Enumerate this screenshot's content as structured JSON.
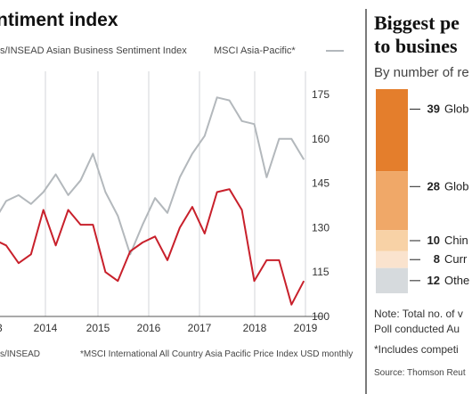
{
  "chart_data": [
    {
      "type": "line",
      "title": "ntiment index",
      "subtitle_left": "s/INSEAD Asian Business Sentiment Index",
      "subtitle_right": "MSCI Asia-Pacific*",
      "footnote_left": "s/INSEAD",
      "footnote_right": "*MSCI International All Country Asia Pacific Price Index USD monthly",
      "x_ticks": [
        "3",
        "2014",
        "2015",
        "2016",
        "2017",
        "2018",
        "2019"
      ],
      "y_ticks": [
        "175",
        "160",
        "145",
        "130",
        "115",
        "100"
      ],
      "ylim": [
        100,
        178
      ],
      "xlim": [
        2013.0,
        2019.3
      ],
      "grid": "vertical",
      "series": [
        {
          "name": "s/INSEAD Asian Business Sentiment Index",
          "color": "#c8202b",
          "x": [
            2013.0,
            2013.25,
            2013.5,
            2013.75,
            2014.0,
            2014.25,
            2014.5,
            2014.75,
            2015.0,
            2015.25,
            2015.5,
            2015.75,
            2016.0,
            2016.25,
            2016.5,
            2016.75,
            2017.0,
            2017.25,
            2017.5,
            2017.75,
            2018.0,
            2018.25,
            2018.5,
            2018.75,
            2019.0,
            2019.25
          ],
          "values": [
            126,
            124,
            118,
            121,
            136,
            124,
            136,
            131,
            131,
            115,
            112,
            122,
            125,
            127,
            119,
            130,
            137,
            128,
            142,
            143,
            136,
            112,
            119,
            119,
            104,
            112
          ]
        },
        {
          "name": "MSCI Asia-Pacific*",
          "color": "#b3b8bc",
          "x": [
            2013.0,
            2013.25,
            2013.5,
            2013.75,
            2014.0,
            2014.25,
            2014.5,
            2014.75,
            2015.0,
            2015.25,
            2015.5,
            2015.75,
            2016.0,
            2016.25,
            2016.5,
            2016.75,
            2017.0,
            2017.25,
            2017.5,
            2017.75,
            2018.0,
            2018.25,
            2018.5,
            2018.75,
            2019.0,
            2019.25
          ],
          "values": [
            132,
            139,
            141,
            138,
            142,
            148,
            141,
            146,
            155,
            142,
            134,
            121,
            131,
            140,
            135,
            147,
            155,
            161,
            174,
            173,
            166,
            165,
            147,
            160,
            160,
            153
          ]
        }
      ]
    },
    {
      "type": "bar",
      "title_lines": [
        "Biggest pe",
        "to busines"
      ],
      "subtitle": "By number of re",
      "segments": [
        {
          "value": 39,
          "label": "Glob",
          "color": "#e47e2c"
        },
        {
          "value": 28,
          "label": "Glob",
          "color": "#f0a868"
        },
        {
          "value": 10,
          "label": "Chin",
          "color": "#f8d2a6"
        },
        {
          "value": 8,
          "label": "Curr",
          "color": "#fae3ce"
        },
        {
          "value": 12,
          "label": "Othe",
          "color": "#d6dadd"
        }
      ],
      "notes": [
        "Note: Total no. of v",
        "Poll conducted Au",
        "*Includes competi"
      ],
      "source": "Source: Thomson Reut"
    }
  ]
}
